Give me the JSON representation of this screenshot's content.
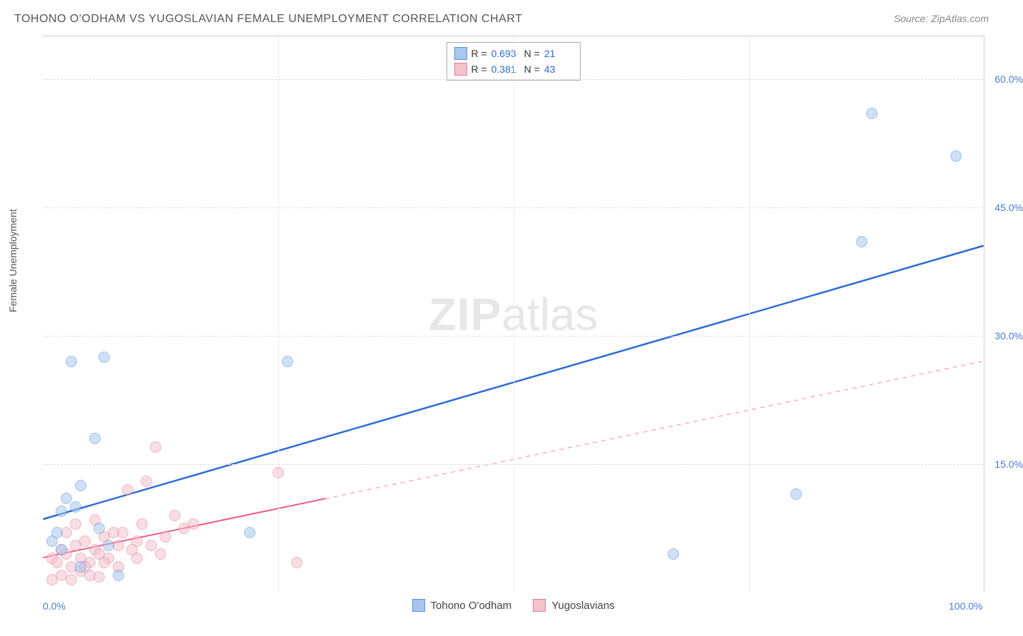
{
  "title": "TOHONO O'ODHAM VS YUGOSLAVIAN FEMALE UNEMPLOYMENT CORRELATION CHART",
  "source": "Source: ZipAtlas.com",
  "ylabel": "Female Unemployment",
  "watermark_bold": "ZIP",
  "watermark_light": "atlas",
  "chart": {
    "type": "scatter",
    "xlim": [
      0,
      100
    ],
    "ylim": [
      0,
      65
    ],
    "x_ticks": [
      {
        "pos": 0,
        "label": "0.0%"
      },
      {
        "pos": 100,
        "label": "100.0%"
      }
    ],
    "y_ticks": [
      {
        "pos": 15,
        "label": "15.0%"
      },
      {
        "pos": 30,
        "label": "30.0%"
      },
      {
        "pos": 45,
        "label": "45.0%"
      },
      {
        "pos": 60,
        "label": "60.0%"
      }
    ],
    "x_gridlines_pct": [
      25,
      50,
      75
    ],
    "background_color": "#ffffff",
    "grid_color": "#dddddd",
    "marker_radius": 8,
    "marker_opacity": 0.55,
    "series": [
      {
        "name": "Tohono O'odham",
        "fill": "#a9c7ee",
        "stroke": "#5b8fd6",
        "R": "0.693",
        "N": "21",
        "trend": {
          "x1": 0,
          "y1": 8.5,
          "x2": 100,
          "y2": 40.5,
          "dash_from_x": null,
          "color": "#2e6bd6",
          "width": 2.5
        },
        "points": [
          {
            "x": 1,
            "y": 6
          },
          {
            "x": 1.5,
            "y": 7
          },
          {
            "x": 2,
            "y": 9.5
          },
          {
            "x": 2.5,
            "y": 11
          },
          {
            "x": 3.5,
            "y": 10
          },
          {
            "x": 4,
            "y": 12.5
          },
          {
            "x": 6,
            "y": 7.5
          },
          {
            "x": 5.5,
            "y": 18
          },
          {
            "x": 3,
            "y": 27
          },
          {
            "x": 6.5,
            "y": 27.5
          },
          {
            "x": 4,
            "y": 3
          },
          {
            "x": 8,
            "y": 2
          },
          {
            "x": 7,
            "y": 5.5
          },
          {
            "x": 22,
            "y": 7
          },
          {
            "x": 26,
            "y": 27
          },
          {
            "x": 67,
            "y": 4.5
          },
          {
            "x": 80,
            "y": 11.5
          },
          {
            "x": 87,
            "y": 41
          },
          {
            "x": 88,
            "y": 56
          },
          {
            "x": 97,
            "y": 51
          },
          {
            "x": 2,
            "y": 5
          }
        ]
      },
      {
        "name": "Yugoslavians",
        "fill": "#f3c2cd",
        "stroke": "#e07f9a",
        "R": "0.381",
        "N": "43",
        "trend": {
          "x1": 0,
          "y1": 4,
          "x2": 100,
          "y2": 27,
          "dash_from_x": 30,
          "color": "#ef5b87",
          "width": 2
        },
        "points": [
          {
            "x": 1,
            "y": 4
          },
          {
            "x": 1.5,
            "y": 3.5
          },
          {
            "x": 2,
            "y": 5
          },
          {
            "x": 2.5,
            "y": 4.5
          },
          {
            "x": 3,
            "y": 3
          },
          {
            "x": 3.5,
            "y": 5.5
          },
          {
            "x": 4,
            "y": 4
          },
          {
            "x": 4.5,
            "y": 6
          },
          {
            "x": 5,
            "y": 3.5
          },
          {
            "x": 5.5,
            "y": 5
          },
          {
            "x": 6,
            "y": 4.5
          },
          {
            "x": 6.5,
            "y": 6.5
          },
          {
            "x": 7,
            "y": 4
          },
          {
            "x": 2,
            "y": 2
          },
          {
            "x": 3,
            "y": 1.5
          },
          {
            "x": 4,
            "y": 2.5
          },
          {
            "x": 5,
            "y": 2
          },
          {
            "x": 6,
            "y": 1.8
          },
          {
            "x": 8,
            "y": 5.5
          },
          {
            "x": 8.5,
            "y": 7
          },
          {
            "x": 9,
            "y": 12
          },
          {
            "x": 10,
            "y": 6
          },
          {
            "x": 10.5,
            "y": 8
          },
          {
            "x": 11,
            "y": 13
          },
          {
            "x": 12,
            "y": 17
          },
          {
            "x": 13,
            "y": 6.5
          },
          {
            "x": 14,
            "y": 9
          },
          {
            "x": 15,
            "y": 7.5
          },
          {
            "x": 1,
            "y": 1.5
          },
          {
            "x": 2.5,
            "y": 7
          },
          {
            "x": 3.5,
            "y": 8
          },
          {
            "x": 4.5,
            "y": 3
          },
          {
            "x": 5.5,
            "y": 8.5
          },
          {
            "x": 6.5,
            "y": 3.5
          },
          {
            "x": 7.5,
            "y": 7
          },
          {
            "x": 8,
            "y": 3
          },
          {
            "x": 9.5,
            "y": 5
          },
          {
            "x": 10,
            "y": 4
          },
          {
            "x": 11.5,
            "y": 5.5
          },
          {
            "x": 12.5,
            "y": 4.5
          },
          {
            "x": 16,
            "y": 8
          },
          {
            "x": 25,
            "y": 14
          },
          {
            "x": 27,
            "y": 3.5
          }
        ]
      }
    ]
  },
  "legend_top": {
    "r_label": "R =",
    "n_label": "N ="
  },
  "legend_bottom_labels": [
    "Tohono O'odham",
    "Yugoslavians"
  ]
}
